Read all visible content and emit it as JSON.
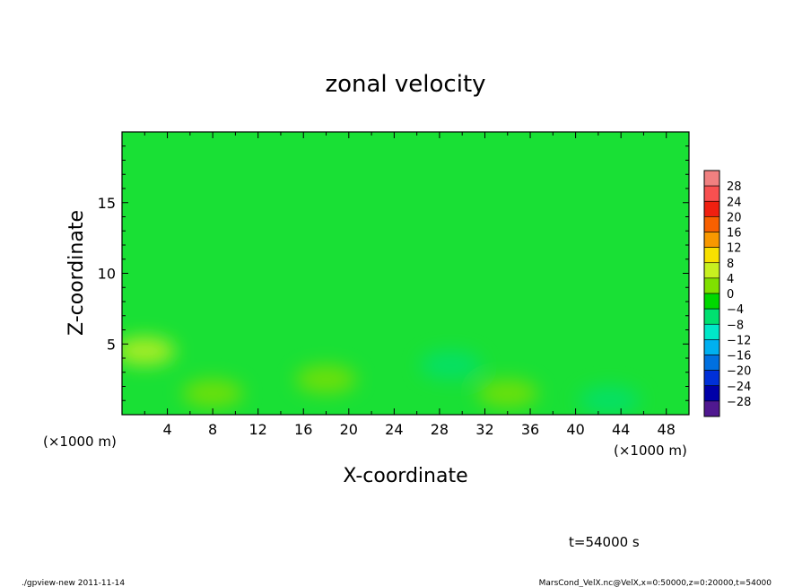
{
  "chart_data": {
    "type": "heatmap",
    "title": "zonal velocity",
    "xlabel": "X-coordinate",
    "ylabel": "Z-coordinate",
    "x_unit": "(×1000 m)",
    "y_unit": "(×1000 m)",
    "xlim": [
      0,
      50
    ],
    "ylim": [
      0,
      20
    ],
    "x_ticks": [
      4,
      8,
      12,
      16,
      20,
      24,
      28,
      32,
      36,
      40,
      44,
      48
    ],
    "y_ticks": [
      5,
      10,
      15
    ],
    "colorbar": {
      "levels": [
        28,
        24,
        20,
        16,
        12,
        8,
        4,
        0,
        -4,
        -8,
        -12,
        -16,
        -20,
        -24,
        -28
      ],
      "level_labels": [
        "28",
        "24",
        "20",
        "16",
        "12",
        "8",
        "4",
        "0",
        "−4",
        "−8",
        "−12",
        "−16",
        "−20",
        "−24",
        "−28"
      ],
      "colors": [
        "#f08080",
        "#f85050",
        "#f02010",
        "#f86000",
        "#f89800",
        "#f8e000",
        "#c8f020",
        "#80e000",
        "#00d800",
        "#00e070",
        "#00e8c8",
        "#00b0f0",
        "#0070e0",
        "#0030d8",
        "#0000a8",
        "#501890"
      ]
    },
    "field_values": {
      "background": -2,
      "low_level_features": [
        {
          "x": 2,
          "z": 4.5,
          "value": 4
        },
        {
          "x": 8,
          "z": 1.5,
          "value": 3
        },
        {
          "x": 18,
          "z": 2.5,
          "value": 3
        },
        {
          "x": 29,
          "z": 3.5,
          "value": -6
        },
        {
          "x": 34,
          "z": 1.5,
          "value": 3
        },
        {
          "x": 43,
          "z": 1.0,
          "value": -8
        }
      ]
    }
  },
  "time_label": "t=54000 s",
  "footer_left": "./gpview-new  2011-11-14",
  "footer_right": "MarsCond_VelX.nc@VelX,x=0:50000,z=0:20000,t=54000"
}
